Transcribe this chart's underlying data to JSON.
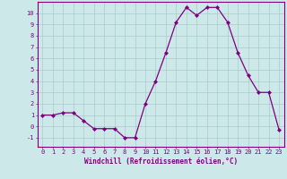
{
  "x": [
    0,
    1,
    2,
    3,
    4,
    5,
    6,
    7,
    8,
    9,
    10,
    11,
    12,
    13,
    14,
    15,
    16,
    17,
    18,
    19,
    20,
    21,
    22,
    23
  ],
  "y": [
    1,
    1,
    1.2,
    1.2,
    0.5,
    -0.2,
    -0.2,
    -0.2,
    -1,
    -1,
    2,
    4,
    6.5,
    9.2,
    10.5,
    9.8,
    10.5,
    10.5,
    9.2,
    6.5,
    4.5,
    3,
    3,
    -0.3
  ],
  "line_color": "#800080",
  "marker": "D",
  "marker_size": 2,
  "bg_color": "#cce8e8",
  "grid_color": "#aacccc",
  "axis_color": "#800080",
  "tick_color": "#800080",
  "xlabel": "Windchill (Refroidissement éolien,°C)",
  "xlabel_fontsize": 5.5,
  "ylabel_ticks": [
    -1,
    0,
    1,
    2,
    3,
    4,
    5,
    6,
    7,
    8,
    9,
    10
  ],
  "ylim": [
    -1.8,
    11.0
  ],
  "xlim": [
    -0.5,
    23.5
  ],
  "tick_fontsize": 5,
  "line_width": 0.9
}
